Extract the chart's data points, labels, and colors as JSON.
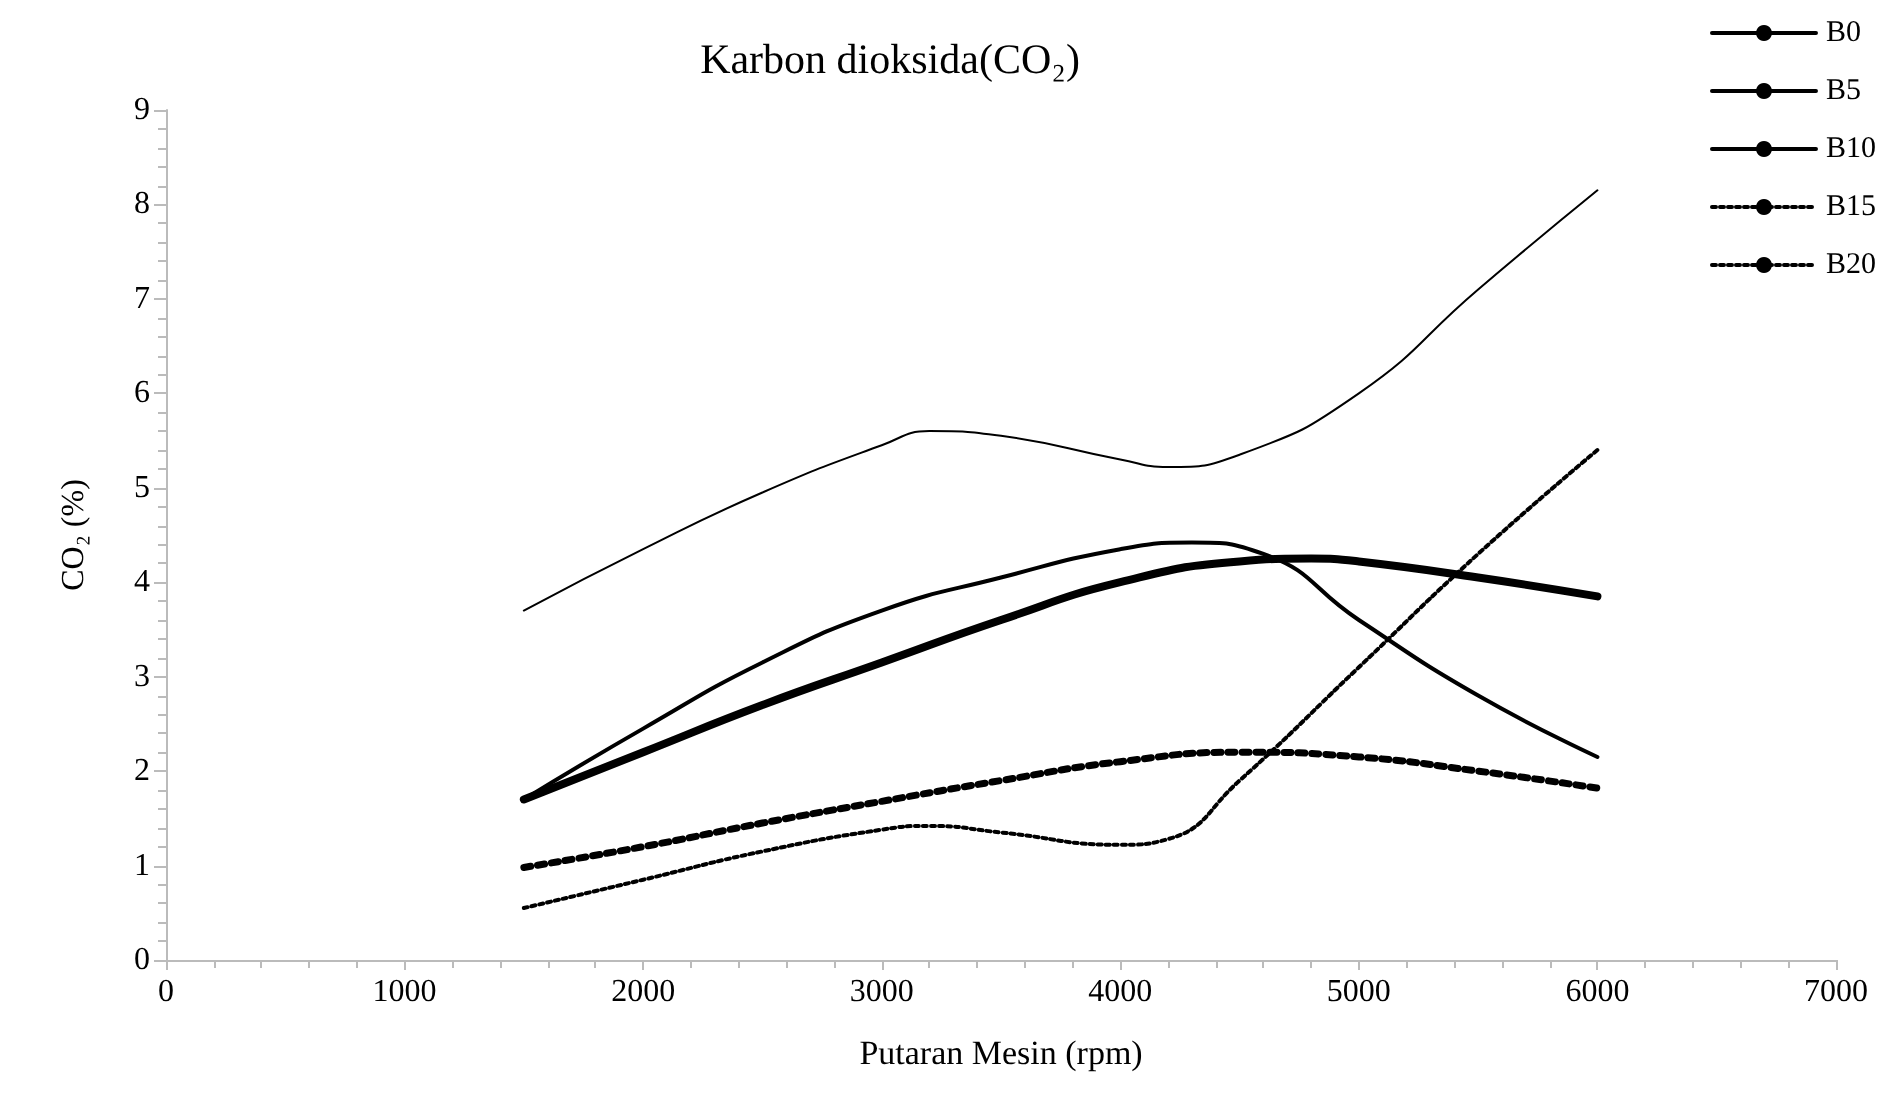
{
  "chart_data": {
    "type": "line",
    "title": "Karbon dioksida(CO₂)",
    "xlabel": "Putaran Mesin (rpm)",
    "ylabel": "CO₂ (%)",
    "xlim": [
      0,
      7000
    ],
    "xticks": [
      0,
      1000,
      2000,
      3000,
      4000,
      5000,
      6000,
      7000
    ],
    "ylim": [
      0,
      9
    ],
    "yticks": [
      0,
      1,
      2,
      3,
      4,
      5,
      6,
      7,
      8,
      9
    ],
    "grid": false,
    "legend": "right",
    "marker": "none",
    "series": [
      {
        "name": "B0",
        "color": "#000000",
        "line_style": "solid",
        "x": [
          1500,
          2000,
          2500,
          3000,
          3200,
          3500,
          4000,
          4200,
          4500,
          5000,
          5500,
          6000
        ],
        "values": [
          3.7,
          4.35,
          4.95,
          5.45,
          5.6,
          5.55,
          5.3,
          5.22,
          5.35,
          6.0,
          7.1,
          8.15
        ]
      },
      {
        "name": "B5",
        "color": "#000000",
        "line_style": "solid",
        "x": [
          1500,
          2000,
          2500,
          3000,
          3500,
          4000,
          4300,
          4600,
          5000,
          5500,
          6000
        ],
        "values": [
          1.7,
          2.45,
          3.15,
          3.7,
          4.05,
          4.35,
          4.42,
          4.3,
          3.6,
          2.8,
          2.15
        ]
      },
      {
        "name": "B10",
        "color": "#000000",
        "line_style": "solid",
        "x": [
          1500,
          2000,
          2500,
          3000,
          3500,
          4000,
          4500,
          4800,
          5000,
          5500,
          6000
        ],
        "values": [
          1.7,
          2.2,
          2.7,
          3.15,
          3.6,
          4.0,
          4.22,
          4.25,
          4.22,
          4.05,
          3.85
        ]
      },
      {
        "name": "B15",
        "color": "#000000",
        "line_style": "dotted",
        "x": [
          1500,
          2000,
          2500,
          3000,
          3200,
          3500,
          4000,
          4200,
          4500,
          5000,
          5500,
          6000
        ],
        "values": [
          0.55,
          0.85,
          1.15,
          1.38,
          1.42,
          1.35,
          1.22,
          1.28,
          1.9,
          3.1,
          4.3,
          5.4
        ]
      },
      {
        "name": "B20",
        "color": "#000000",
        "line_style": "dotted",
        "x": [
          1500,
          2000,
          2500,
          3000,
          3500,
          4000,
          4500,
          5000,
          5500,
          6000
        ],
        "values": [
          0.98,
          1.2,
          1.45,
          1.68,
          1.9,
          2.1,
          2.2,
          2.15,
          2.0,
          1.82
        ]
      }
    ]
  }
}
